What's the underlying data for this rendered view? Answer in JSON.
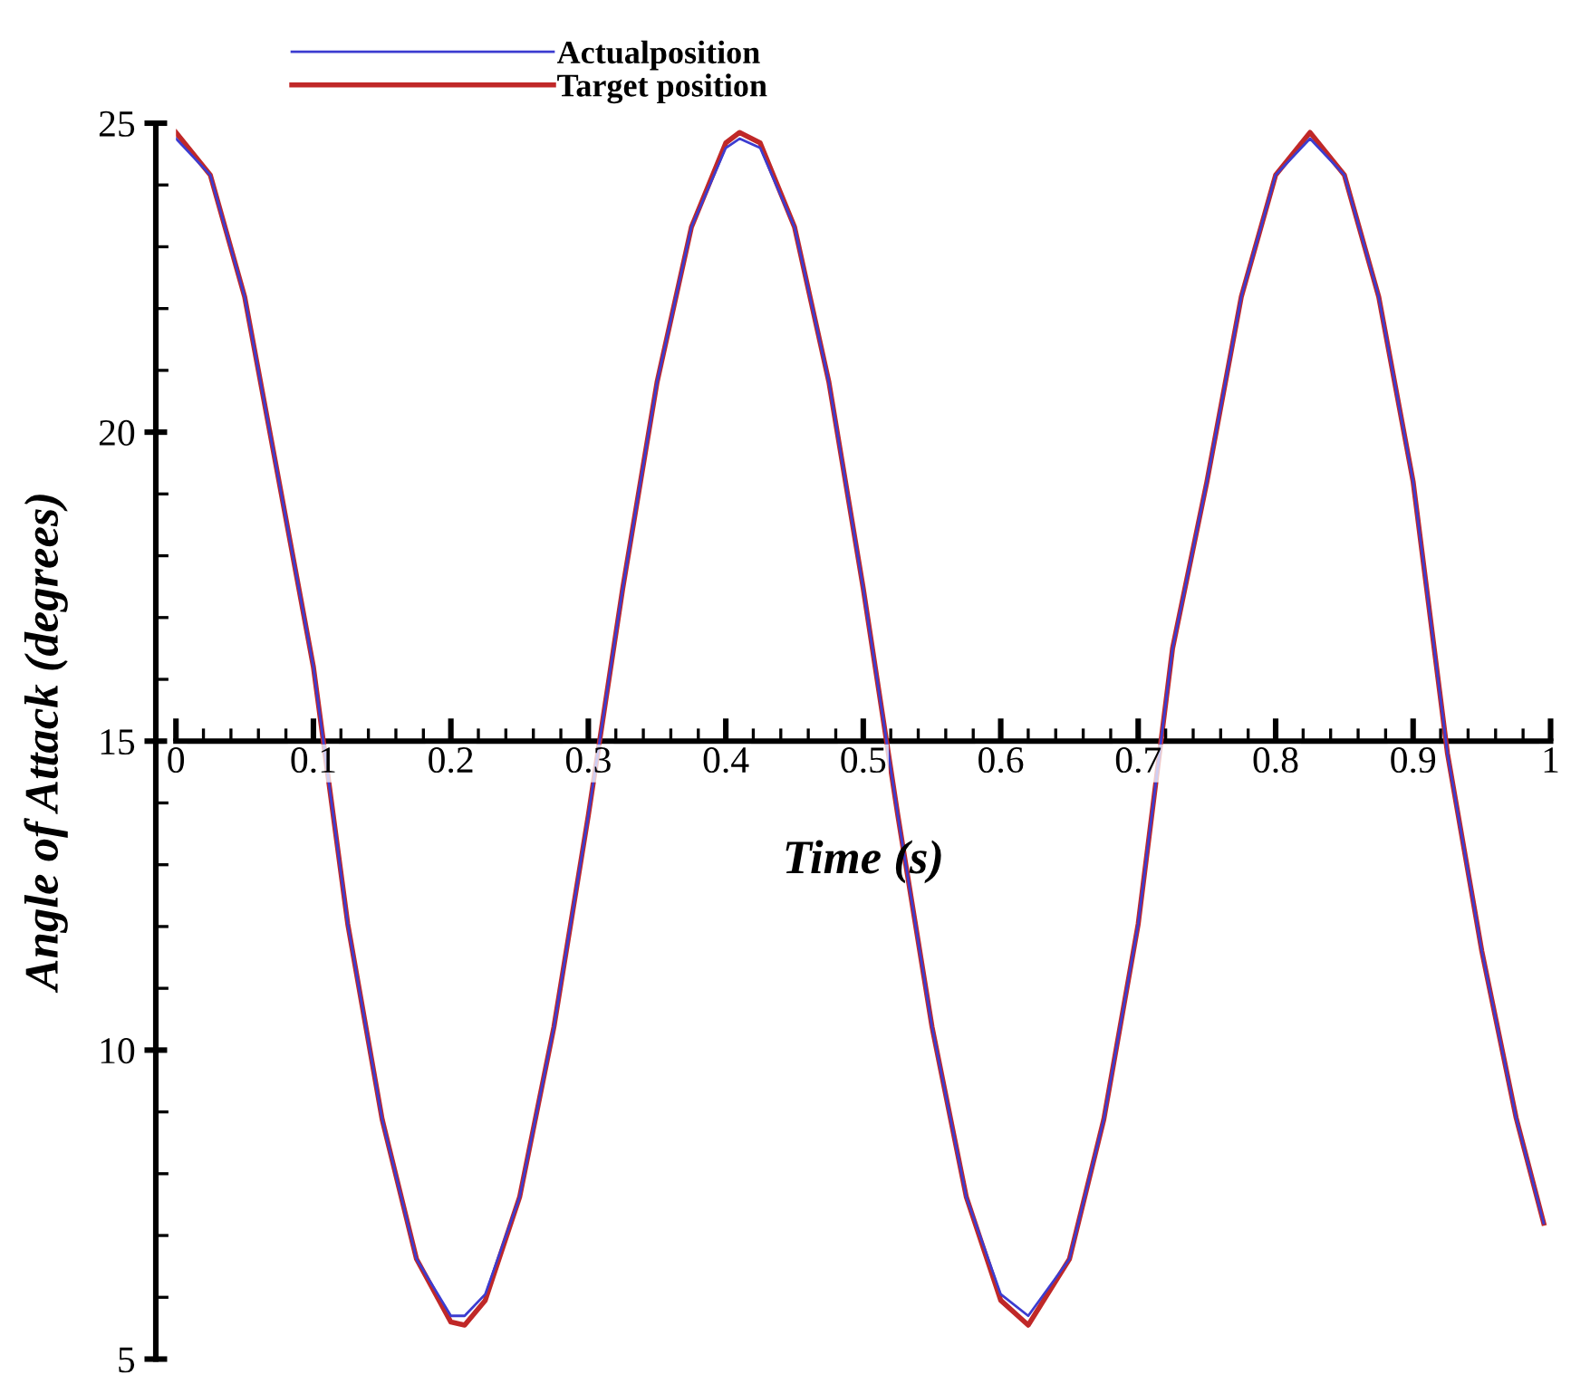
{
  "chart_data": {
    "type": "line",
    "xlabel": "Time (s)",
    "ylabel": "Angle of Attack (degrees)",
    "xlim": [
      0,
      1
    ],
    "xticks": [
      0,
      0.1,
      0.2,
      0.3,
      0.4,
      0.5,
      0.6,
      0.7,
      0.8,
      0.9,
      1
    ],
    "ylim": [
      5,
      25
    ],
    "yticks": [
      5,
      10,
      15,
      20,
      25
    ],
    "grid": false,
    "legend": "top left",
    "marker": "none",
    "line_style": "solid",
    "x": [
      0,
      0.025,
      0.05,
      0.075,
      0.1,
      0.125,
      0.15,
      0.175,
      0.2,
      0.21,
      0.225,
      0.25,
      0.275,
      0.3,
      0.325,
      0.35,
      0.375,
      0.4,
      0.41,
      0.425,
      0.45,
      0.475,
      0.5,
      0.525,
      0.55,
      0.575,
      0.6,
      0.62,
      0.65,
      0.675,
      0.7,
      0.725,
      0.75,
      0.775,
      0.8,
      0.825,
      0.85,
      0.875,
      0.9,
      0.925,
      0.95,
      0.975,
      0.995
    ],
    "series": [
      {
        "name": "Actualposition",
        "color": "#3c3cd0",
        "values": [
          24.75,
          24.16,
          22.19,
          19.2,
          16.2,
          12.04,
          8.88,
          6.62,
          5.7,
          5.7,
          6.05,
          7.62,
          10.38,
          13.8,
          17.47,
          20.81,
          23.32,
          24.6,
          24.75,
          24.6,
          23.32,
          20.81,
          17.47,
          13.82,
          10.38,
          7.62,
          6.05,
          5.7,
          6.62,
          8.88,
          12.04,
          16.5,
          19.2,
          22.19,
          24.16,
          24.75,
          24.16,
          22.19,
          19.2,
          14.8,
          11.6,
          8.9,
          7.2
        ]
      },
      {
        "name": "Target position",
        "color": "#c02828",
        "values": [
          24.85,
          24.16,
          22.19,
          19.2,
          16.2,
          12.04,
          8.88,
          6.62,
          5.6,
          5.55,
          5.95,
          7.62,
          10.38,
          13.8,
          17.47,
          20.81,
          23.32,
          24.68,
          24.85,
          24.68,
          23.32,
          20.81,
          17.47,
          13.82,
          10.38,
          7.62,
          5.95,
          5.55,
          6.62,
          8.88,
          12.04,
          16.5,
          19.2,
          22.19,
          24.16,
          24.85,
          24.16,
          22.19,
          19.2,
          14.8,
          11.6,
          8.9,
          7.2
        ]
      }
    ]
  }
}
